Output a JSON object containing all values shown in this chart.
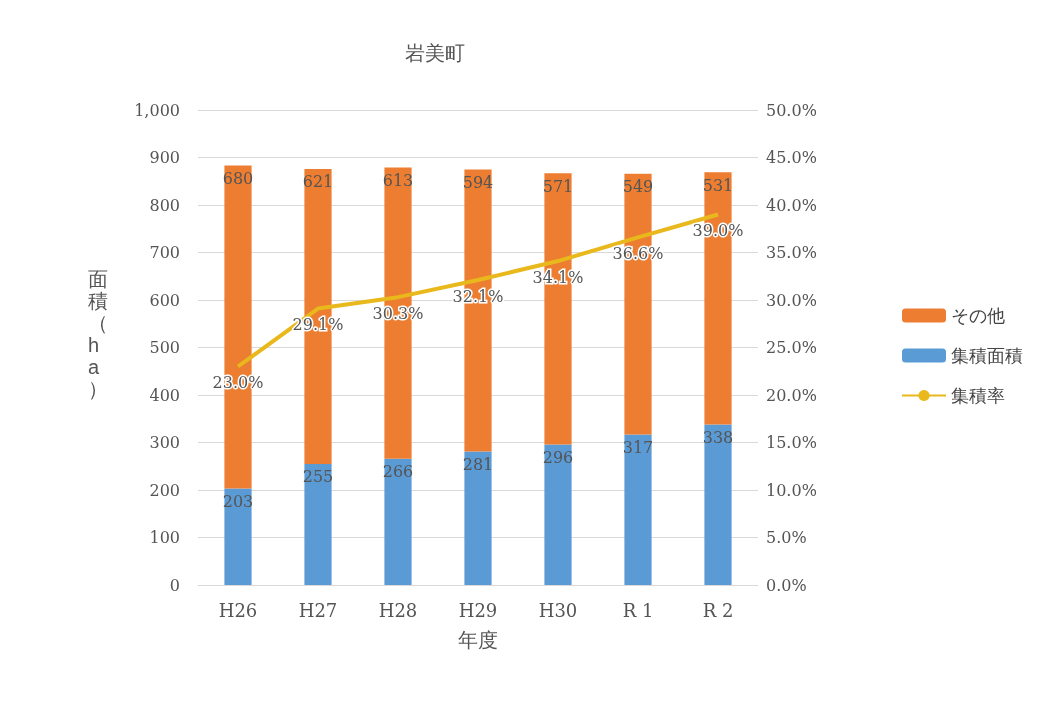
{
  "chart_data": {
    "type": "bar",
    "title": "岩美町",
    "xlabel": "年度",
    "ylabel": "面積（ha）",
    "stacked": true,
    "categories": [
      "H26",
      "H27",
      "H28",
      "H29",
      "H30",
      "R 1",
      "R 2"
    ],
    "series": [
      {
        "name": "集積面積",
        "color": "#5b9bd5",
        "values": [
          203,
          255,
          266,
          281,
          296,
          317,
          338
        ]
      },
      {
        "name": "その他",
        "color": "#ed7d31",
        "values": [
          680,
          621,
          613,
          594,
          571,
          549,
          531
        ]
      },
      {
        "name": "集積率",
        "type": "line",
        "axis": "y2",
        "color": "#e8b81c",
        "values": [
          23.0,
          29.1,
          30.3,
          32.1,
          34.1,
          36.6,
          39.0
        ],
        "value_labels": [
          "23.0%",
          "29.1%",
          "30.3%",
          "32.1%",
          "34.1%",
          "36.6%",
          "39.0%"
        ]
      }
    ],
    "data_labels": true,
    "ylim": [
      0,
      1000
    ],
    "yticks": [
      0,
      100,
      200,
      300,
      400,
      500,
      600,
      700,
      800,
      900,
      {
        "value": 1000,
        "label": "1,000"
      }
    ],
    "y2lim": [
      0,
      50
    ],
    "y2ticks": [
      {
        "value": 0,
        "label": "0.0%"
      },
      {
        "value": 5,
        "label": "5.0%"
      },
      {
        "value": 10,
        "label": "10.0%"
      },
      {
        "value": 15,
        "label": "15.0%"
      },
      {
        "value": 20,
        "label": "20.0%"
      },
      {
        "value": 25,
        "label": "25.0%"
      },
      {
        "value": 30,
        "label": "30.0%"
      },
      {
        "value": 35,
        "label": "35.0%"
      },
      {
        "value": 40,
        "label": "40.0%"
      },
      {
        "value": 45,
        "label": "45.0%"
      },
      {
        "value": 50,
        "label": "50.0%"
      }
    ],
    "grid": "y",
    "legend": "right",
    "marker": "none"
  }
}
